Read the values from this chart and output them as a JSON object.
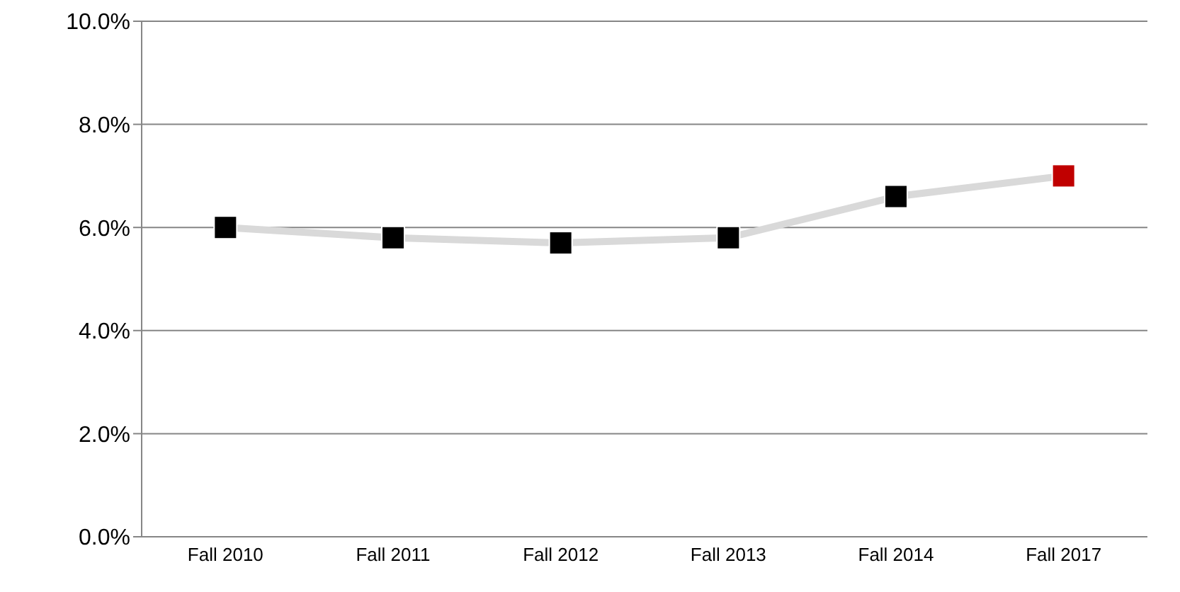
{
  "chart_data": {
    "type": "line",
    "categories": [
      "Fall 2010",
      "Fall 2011",
      "Fall 2012",
      "Fall 2013",
      "Fall 2014",
      "Fall 2017"
    ],
    "series": [
      {
        "color": "#d9d9d9",
        "colors": [
          "#000000",
          "#000000",
          "#000000",
          "#000000",
          "#000000",
          "#c00000"
        ],
        "values": [
          6.0,
          5.8,
          5.7,
          5.8,
          6.6,
          7.0
        ]
      }
    ],
    "ylim": [
      0,
      10
    ],
    "yticks": [
      {
        "value": 0,
        "label": "0.0%"
      },
      {
        "value": 2,
        "label": "2.0%"
      },
      {
        "value": 4,
        "label": "4.0%"
      },
      {
        "value": 6,
        "label": "6.0%"
      },
      {
        "value": 8,
        "label": "8.0%"
      },
      {
        "value": 10,
        "label": "10.0%"
      }
    ],
    "grid": "y",
    "marker": "square",
    "legend": false
  }
}
